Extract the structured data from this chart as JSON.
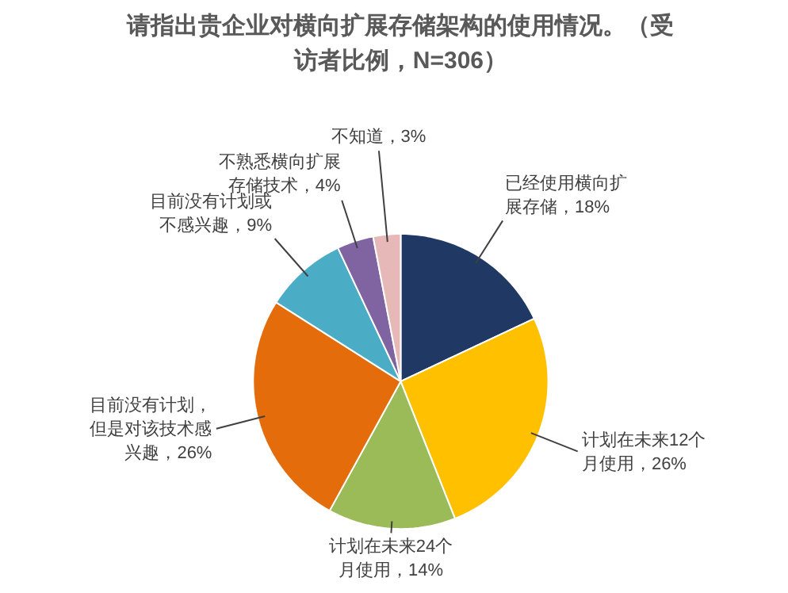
{
  "chart_data": {
    "type": "pie",
    "title": "请指出贵企业对横向扩展存储架构的使用情况。（受访者比例，N=306）",
    "categories": [
      "已经使用横向扩展存储",
      "计划在未来12个月使用",
      "计划在未来24个月使用",
      "目前没有计划，但是对该技术感兴趣",
      "目前没有计划或不感兴趣",
      "不熟悉横向扩展存储技术",
      "不知道"
    ],
    "values": [
      18,
      26,
      14,
      26,
      9,
      4,
      3
    ],
    "value_labels": [
      "18%",
      "26%",
      "14%",
      "26%",
      "9%",
      "4%",
      "3%"
    ],
    "colors": [
      "#1f3864",
      "#ffc000",
      "#9bbb59",
      "#e46c0a",
      "#4bacc6",
      "#8064a2",
      "#e6b9b8"
    ]
  }
}
